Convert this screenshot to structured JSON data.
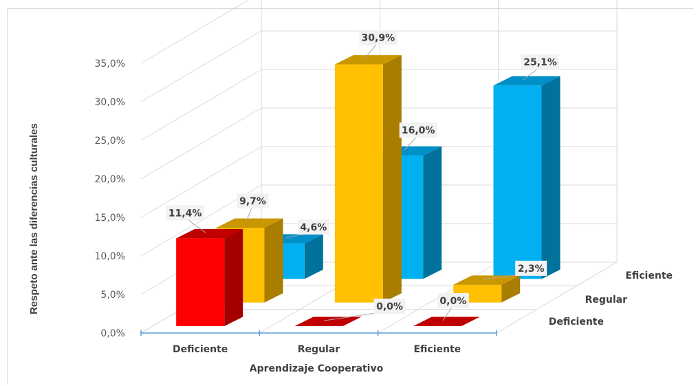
{
  "chart_data": {
    "type": "bar",
    "style": "3d-column",
    "xlabel": "Aprendizaje Cooperativo",
    "ylabel": "Respeto ante las diferencias culturales",
    "categories": [
      "Deficiente",
      "Regular",
      "Eficiente"
    ],
    "series": [
      {
        "name": "Deficiente",
        "values": [
          11.4,
          0.0,
          0.0
        ],
        "value_labels": [
          "11,4%",
          "0,0%",
          "0,0%"
        ],
        "color": "#ff0000",
        "side": "#a50000",
        "top": "#c00000"
      },
      {
        "name": "Regular",
        "values": [
          9.7,
          30.9,
          2.3
        ],
        "value_labels": [
          "9,7%",
          "30,9%",
          "2,3%"
        ],
        "color": "#ffc000",
        "side": "#a87d00",
        "top": "#c99700"
      },
      {
        "name": "Eficiente",
        "values": [
          4.6,
          16.0,
          25.1
        ],
        "value_labels": [
          "4,6%",
          "16,0%",
          "25,1%"
        ],
        "color": "#00b0f0",
        "side": "#00729c",
        "top": "#0090c8"
      }
    ],
    "yticks": [
      "0,0%",
      "5,0%",
      "10,0%",
      "15,0%",
      "20,0%",
      "25,0%",
      "30,0%",
      "35,0%"
    ],
    "ylim": [
      0,
      35
    ],
    "grid": true,
    "legend": "series-depth-axis-right"
  }
}
